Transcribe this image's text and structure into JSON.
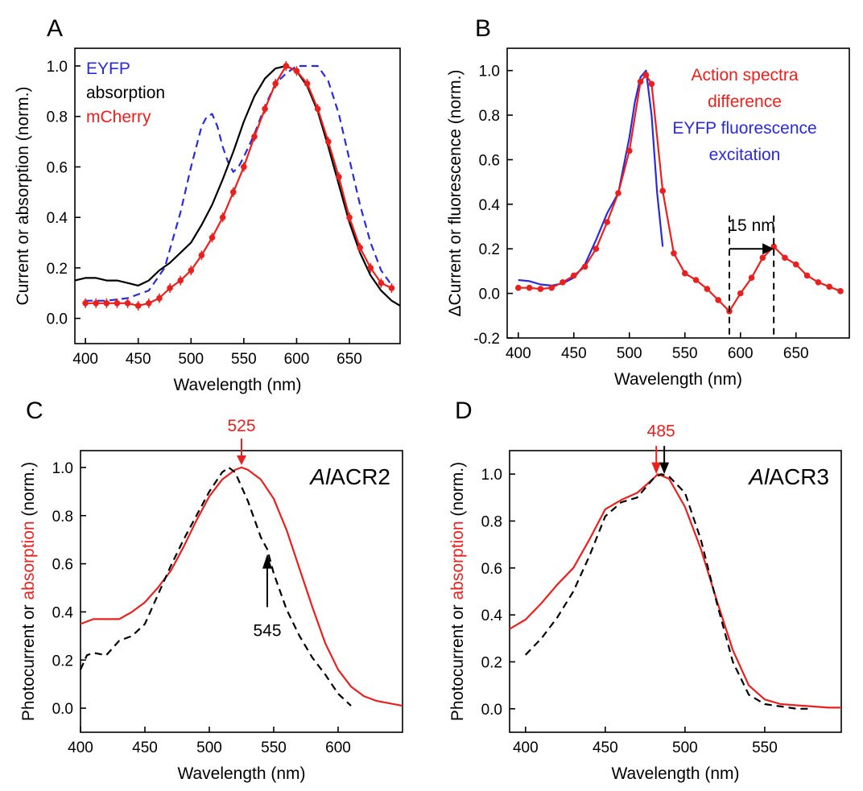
{
  "figure": {
    "panels": [
      "A",
      "B",
      "C",
      "D"
    ]
  },
  "chart_data": [
    {
      "panel": "A",
      "type": "line",
      "xlabel": "Wavelength (nm)",
      "ylabel": "Current or absorption (norm.)",
      "xlim": [
        390,
        698
      ],
      "ylim": [
        -0.1,
        1.07
      ],
      "xticks": [
        400,
        450,
        500,
        550,
        600,
        650
      ],
      "yticks": [
        0.0,
        0.2,
        0.4,
        0.6,
        0.8,
        1.0
      ],
      "legend": [
        {
          "label": "EYFP",
          "color": "#2a2ad8"
        },
        {
          "label": "absorption",
          "color": "#000000"
        },
        {
          "label": "mCherry",
          "color": "#e8201e"
        }
      ],
      "series": [
        {
          "name": "EYFP",
          "color": "#2a2ad8",
          "style": "dashed",
          "x": [
            400,
            420,
            440,
            460,
            475,
            490,
            500,
            510,
            515,
            520,
            525,
            530,
            535,
            540,
            545,
            550,
            560,
            570,
            580,
            590,
            600,
            610,
            620,
            630,
            640,
            650,
            660,
            670,
            680,
            692
          ],
          "y": [
            0.07,
            0.07,
            0.08,
            0.11,
            0.2,
            0.42,
            0.6,
            0.76,
            0.8,
            0.81,
            0.76,
            0.68,
            0.62,
            0.58,
            0.6,
            0.64,
            0.73,
            0.84,
            0.93,
            0.97,
            1.0,
            1.0,
            1.0,
            0.94,
            0.81,
            0.63,
            0.45,
            0.3,
            0.19,
            0.12
          ]
        },
        {
          "name": "absorption",
          "color": "#000000",
          "style": "solid",
          "x": [
            390,
            400,
            410,
            420,
            430,
            440,
            450,
            460,
            470,
            480,
            490,
            500,
            510,
            520,
            530,
            540,
            550,
            560,
            570,
            580,
            590,
            600,
            610,
            620,
            630,
            640,
            650,
            660,
            670,
            680,
            690,
            698
          ],
          "y": [
            0.15,
            0.16,
            0.16,
            0.15,
            0.15,
            0.14,
            0.13,
            0.15,
            0.19,
            0.22,
            0.26,
            0.3,
            0.37,
            0.45,
            0.55,
            0.66,
            0.78,
            0.88,
            0.95,
            0.99,
            1.0,
            0.98,
            0.92,
            0.82,
            0.68,
            0.53,
            0.38,
            0.26,
            0.17,
            0.11,
            0.07,
            0.05
          ]
        },
        {
          "name": "mCherry",
          "color": "#e8201e",
          "style": "solid-markers",
          "x": [
            400,
            410,
            420,
            430,
            440,
            450,
            460,
            470,
            480,
            490,
            500,
            510,
            520,
            530,
            540,
            550,
            560,
            570,
            580,
            590,
            600,
            610,
            620,
            630,
            640,
            650,
            660,
            670,
            680,
            690
          ],
          "y": [
            0.06,
            0.06,
            0.06,
            0.06,
            0.06,
            0.05,
            0.06,
            0.08,
            0.12,
            0.15,
            0.19,
            0.25,
            0.32,
            0.4,
            0.5,
            0.6,
            0.72,
            0.83,
            0.93,
            1.0,
            0.98,
            0.93,
            0.83,
            0.7,
            0.56,
            0.4,
            0.28,
            0.2,
            0.14,
            0.12
          ]
        }
      ]
    },
    {
      "panel": "B",
      "type": "line",
      "xlabel": "Wavelength (nm)",
      "ylabel": "ΔCurrent or fluorescence (norm.)",
      "xlim": [
        390,
        698
      ],
      "ylim": [
        -0.2,
        1.1
      ],
      "xticks": [
        400,
        450,
        500,
        550,
        600,
        650
      ],
      "yticks": [
        -0.2,
        0.0,
        0.2,
        0.4,
        0.6,
        0.8,
        1.0
      ],
      "legend": [
        {
          "label": "Action spectra",
          "color": "#e8201e"
        },
        {
          "label": "difference",
          "color": "#e8201e"
        },
        {
          "label": "EYFP fluorescence",
          "color": "#2a2ad8"
        },
        {
          "label": "excitation",
          "color": "#2a2ad8"
        }
      ],
      "annotations": [
        {
          "text": "15 nm",
          "x": 610,
          "y": 0.28
        }
      ],
      "markers": {
        "dashed_lines_x": [
          590,
          630
        ],
        "arrow_from": 590,
        "arrow_to": 630,
        "arrow_y": 0.2
      },
      "series": [
        {
          "name": "EYFP fluorescence excitation",
          "color": "#2a2ad8",
          "style": "solid",
          "x": [
            400,
            410,
            420,
            430,
            440,
            450,
            460,
            470,
            480,
            490,
            500,
            505,
            510,
            515,
            520,
            525,
            530
          ],
          "y": [
            0.06,
            0.055,
            0.04,
            0.035,
            0.045,
            0.07,
            0.13,
            0.24,
            0.36,
            0.45,
            0.7,
            0.86,
            0.97,
            1.0,
            0.8,
            0.45,
            0.21
          ]
        },
        {
          "name": "Action spectra difference",
          "color": "#e8201e",
          "style": "solid-markers",
          "x": [
            400,
            410,
            420,
            430,
            440,
            450,
            460,
            470,
            480,
            490,
            500,
            510,
            515,
            520,
            530,
            540,
            550,
            560,
            570,
            580,
            590,
            600,
            610,
            620,
            630,
            640,
            650,
            660,
            670,
            680,
            690
          ],
          "y": [
            0.025,
            0.025,
            0.02,
            0.025,
            0.05,
            0.08,
            0.12,
            0.2,
            0.32,
            0.45,
            0.64,
            0.95,
            0.98,
            0.94,
            0.46,
            0.18,
            0.09,
            0.06,
            0.02,
            -0.03,
            -0.08,
            0.0,
            0.07,
            0.16,
            0.21,
            0.16,
            0.13,
            0.08,
            0.05,
            0.03,
            0.01
          ]
        }
      ]
    },
    {
      "panel": "C",
      "type": "line",
      "xlabel": "Wavelength (nm)",
      "ylabel_parts": [
        {
          "text": "Photocurrent or ",
          "color": "#000000"
        },
        {
          "text": "absorption",
          "color": "#e8201e"
        },
        {
          "text": " (norm.)",
          "color": "#000000"
        }
      ],
      "xlim": [
        400,
        650
      ],
      "ylim": [
        -0.1,
        1.07
      ],
      "xticks": [
        400,
        450,
        500,
        550,
        600
      ],
      "yticks": [
        0.0,
        0.2,
        0.4,
        0.6,
        0.8,
        1.0
      ],
      "label_italic": "Al",
      "label_rest": "ACR2",
      "annotations": [
        {
          "text": "525",
          "x": 525,
          "y": 1.14,
          "color": "#e8201e"
        },
        {
          "text": "545",
          "x": 545,
          "y": 0.38,
          "color": "#000000"
        }
      ],
      "series": [
        {
          "name": "absorption",
          "color": "#e8201e",
          "style": "solid",
          "x": [
            400,
            410,
            420,
            430,
            440,
            450,
            460,
            470,
            480,
            490,
            500,
            510,
            520,
            525,
            530,
            540,
            550,
            560,
            570,
            580,
            590,
            600,
            610,
            620,
            630,
            640,
            650
          ],
          "y": [
            0.35,
            0.37,
            0.37,
            0.37,
            0.4,
            0.44,
            0.5,
            0.57,
            0.67,
            0.78,
            0.88,
            0.95,
            0.99,
            1.0,
            0.99,
            0.95,
            0.87,
            0.74,
            0.58,
            0.42,
            0.27,
            0.16,
            0.09,
            0.05,
            0.03,
            0.02,
            0.01
          ]
        },
        {
          "name": "photocurrent",
          "color": "#000000",
          "style": "dashed",
          "x": [
            400,
            405,
            410,
            420,
            430,
            440,
            450,
            460,
            470,
            480,
            490,
            500,
            510,
            515,
            520,
            530,
            540,
            545,
            550,
            560,
            570,
            580,
            590,
            600,
            610
          ],
          "y": [
            0.16,
            0.22,
            0.23,
            0.22,
            0.28,
            0.3,
            0.35,
            0.47,
            0.59,
            0.7,
            0.8,
            0.9,
            0.98,
            1.0,
            0.98,
            0.86,
            0.71,
            0.66,
            0.56,
            0.41,
            0.3,
            0.21,
            0.14,
            0.06,
            0.01
          ]
        }
      ]
    },
    {
      "panel": "D",
      "type": "line",
      "xlabel": "Wavelength (nm)",
      "ylabel_parts": [
        {
          "text": "Photocurrent or ",
          "color": "#000000"
        },
        {
          "text": "absorption",
          "color": "#e8201e"
        },
        {
          "text": " (norm.)",
          "color": "#000000"
        }
      ],
      "xlim": [
        390,
        598
      ],
      "ylim": [
        -0.1,
        1.1
      ],
      "xticks": [
        400,
        450,
        500,
        550
      ],
      "yticks": [
        0.0,
        0.2,
        0.4,
        0.6,
        0.8,
        1.0
      ],
      "label_italic": "Al",
      "label_rest": "ACR3",
      "annotations": [
        {
          "text": "485",
          "x": 485,
          "y": 1.18,
          "color": "#e8201e"
        }
      ],
      "series": [
        {
          "name": "absorption",
          "color": "#e8201e",
          "style": "solid",
          "x": [
            390,
            400,
            410,
            420,
            430,
            440,
            450,
            460,
            470,
            480,
            483,
            490,
            500,
            510,
            520,
            530,
            540,
            550,
            560,
            570,
            580,
            590,
            598
          ],
          "y": [
            0.34,
            0.38,
            0.45,
            0.53,
            0.6,
            0.72,
            0.85,
            0.89,
            0.92,
            0.98,
            1.0,
            0.98,
            0.86,
            0.68,
            0.46,
            0.25,
            0.1,
            0.04,
            0.02,
            0.015,
            0.01,
            0.005,
            0.005
          ]
        },
        {
          "name": "photocurrent",
          "color": "#000000",
          "style": "dashed",
          "x": [
            400,
            410,
            420,
            430,
            440,
            450,
            460,
            470,
            480,
            485,
            490,
            500,
            510,
            520,
            530,
            540,
            550,
            560,
            570,
            578
          ],
          "y": [
            0.23,
            0.3,
            0.39,
            0.5,
            0.65,
            0.82,
            0.88,
            0.9,
            0.98,
            1.0,
            0.99,
            0.92,
            0.72,
            0.45,
            0.2,
            0.06,
            0.02,
            0.01,
            0.0,
            0.0
          ]
        }
      ]
    }
  ]
}
